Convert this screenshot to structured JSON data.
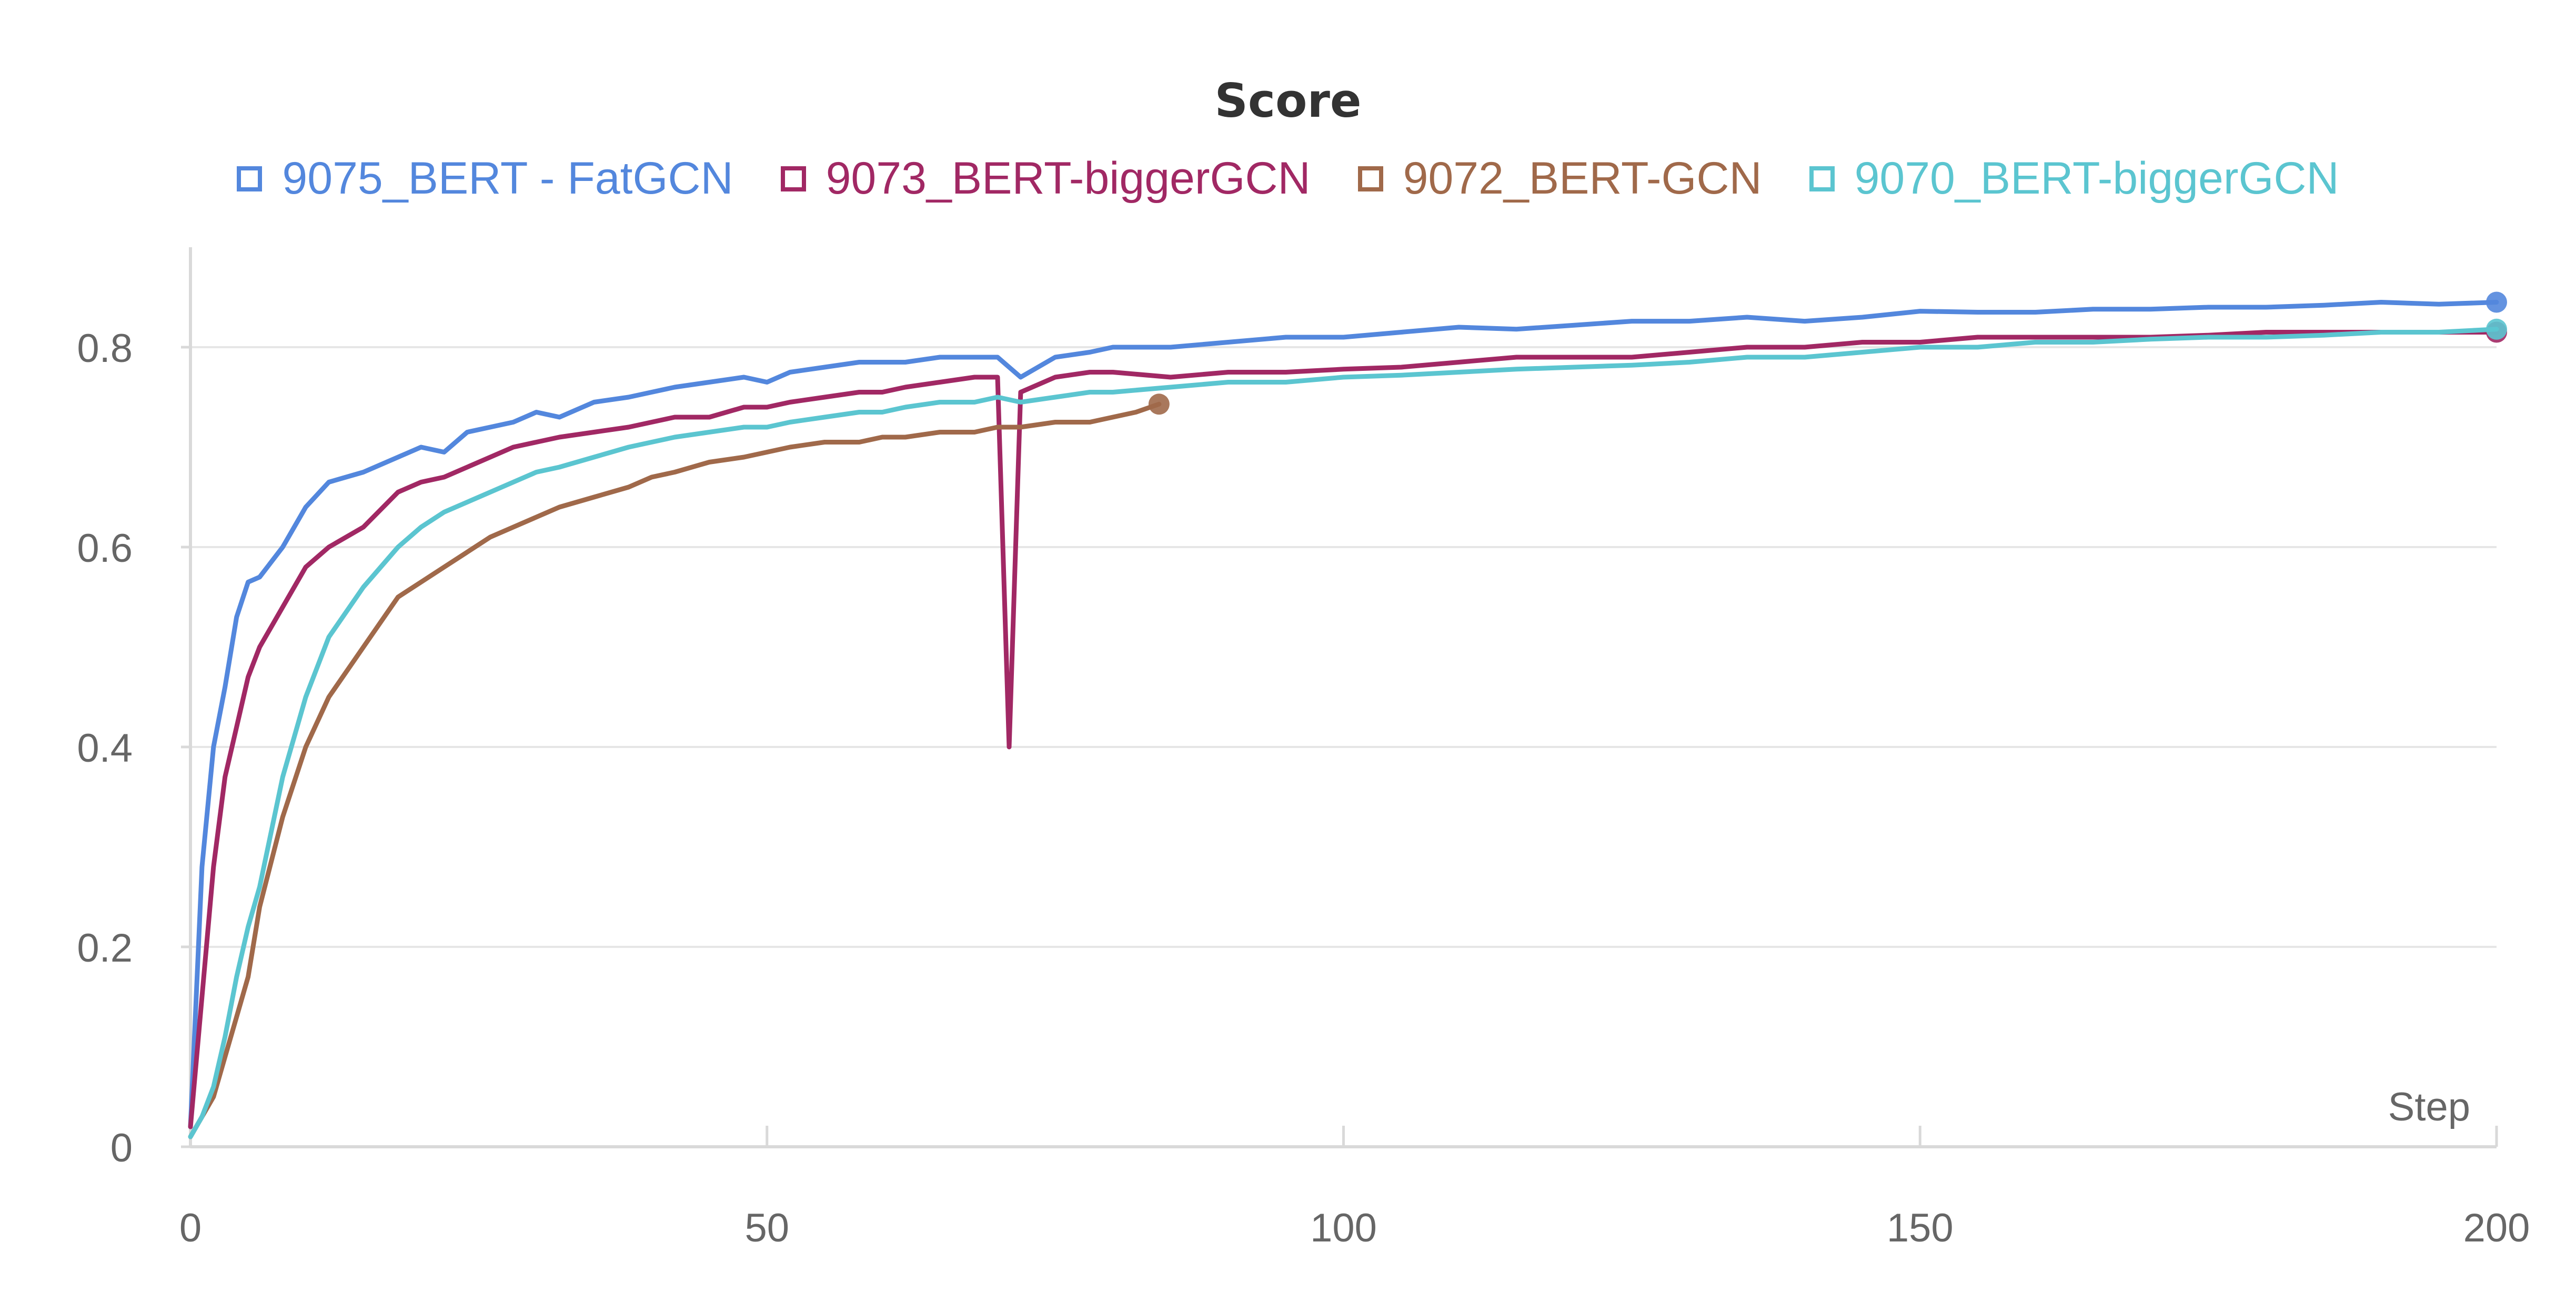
{
  "chart_data": {
    "type": "line",
    "title": "Score",
    "xlabel": "Step",
    "ylabel": "",
    "xlim": [
      0,
      200
    ],
    "ylim": [
      0,
      0.9
    ],
    "x_ticks": [
      0,
      50,
      100,
      150,
      200
    ],
    "x_tick_labels": [
      "0",
      "50",
      "100",
      "150",
      "200"
    ],
    "y_ticks": [
      0,
      0.2,
      0.4,
      0.6,
      0.8
    ],
    "y_tick_labels": [
      "0",
      "0.2",
      "0.4",
      "0.6",
      "0.8"
    ],
    "grid": true,
    "legend": "top-center",
    "series": [
      {
        "name": "9075_BERT - FatGCN",
        "color": "#5387dd",
        "x": [
          0,
          1,
          2,
          3,
          4,
          5,
          6,
          8,
          10,
          12,
          15,
          18,
          20,
          22,
          24,
          26,
          28,
          30,
          32,
          35,
          38,
          40,
          42,
          45,
          48,
          50,
          52,
          55,
          58,
          60,
          62,
          65,
          68,
          70,
          72,
          75,
          78,
          80,
          85,
          90,
          95,
          100,
          105,
          110,
          115,
          120,
          125,
          130,
          135,
          140,
          145,
          150,
          155,
          160,
          165,
          170,
          175,
          180,
          185,
          190,
          195,
          200
        ],
        "y": [
          0.02,
          0.28,
          0.4,
          0.46,
          0.53,
          0.565,
          0.57,
          0.6,
          0.64,
          0.665,
          0.675,
          0.69,
          0.7,
          0.695,
          0.715,
          0.72,
          0.725,
          0.735,
          0.73,
          0.745,
          0.75,
          0.755,
          0.76,
          0.765,
          0.77,
          0.765,
          0.775,
          0.78,
          0.785,
          0.785,
          0.785,
          0.79,
          0.79,
          0.79,
          0.77,
          0.79,
          0.795,
          0.8,
          0.8,
          0.805,
          0.81,
          0.81,
          0.815,
          0.82,
          0.818,
          0.822,
          0.826,
          0.826,
          0.83,
          0.826,
          0.83,
          0.836,
          0.835,
          0.835,
          0.838,
          0.838,
          0.84,
          0.84,
          0.842,
          0.845,
          0.843,
          0.845
        ]
      },
      {
        "name": "9073_BERT-biggerGCN",
        "color": "#a12864",
        "x": [
          0,
          1,
          2,
          3,
          4,
          5,
          6,
          8,
          10,
          12,
          15,
          18,
          20,
          22,
          24,
          26,
          28,
          30,
          32,
          35,
          38,
          40,
          42,
          45,
          48,
          50,
          52,
          55,
          58,
          60,
          62,
          65,
          68,
          70,
          71,
          72,
          75,
          78,
          80,
          85,
          90,
          95,
          100,
          105,
          110,
          115,
          120,
          125,
          130,
          135,
          140,
          145,
          150,
          155,
          160,
          165,
          170,
          175,
          180,
          185,
          190,
          195,
          200
        ],
        "y": [
          0.02,
          0.15,
          0.28,
          0.37,
          0.42,
          0.47,
          0.5,
          0.54,
          0.58,
          0.6,
          0.62,
          0.655,
          0.665,
          0.67,
          0.68,
          0.69,
          0.7,
          0.705,
          0.71,
          0.715,
          0.72,
          0.725,
          0.73,
          0.73,
          0.74,
          0.74,
          0.745,
          0.75,
          0.755,
          0.755,
          0.76,
          0.765,
          0.77,
          0.77,
          0.4,
          0.755,
          0.77,
          0.775,
          0.775,
          0.77,
          0.775,
          0.775,
          0.778,
          0.78,
          0.785,
          0.79,
          0.79,
          0.79,
          0.795,
          0.8,
          0.8,
          0.805,
          0.805,
          0.81,
          0.81,
          0.81,
          0.81,
          0.812,
          0.815,
          0.815,
          0.815,
          0.815,
          0.815
        ]
      },
      {
        "name": "9072_BERT-GCN",
        "color": "#a0694a",
        "x": [
          0,
          1,
          2,
          3,
          4,
          5,
          6,
          8,
          10,
          12,
          15,
          18,
          20,
          22,
          24,
          26,
          28,
          30,
          32,
          35,
          38,
          40,
          42,
          45,
          48,
          50,
          52,
          55,
          58,
          60,
          62,
          65,
          68,
          70,
          72,
          75,
          78,
          80,
          82,
          84
        ],
        "y": [
          0.01,
          0.03,
          0.05,
          0.09,
          0.13,
          0.17,
          0.24,
          0.33,
          0.4,
          0.45,
          0.5,
          0.55,
          0.565,
          0.58,
          0.595,
          0.61,
          0.62,
          0.63,
          0.64,
          0.65,
          0.66,
          0.67,
          0.675,
          0.685,
          0.69,
          0.695,
          0.7,
          0.705,
          0.705,
          0.71,
          0.71,
          0.715,
          0.715,
          0.72,
          0.72,
          0.725,
          0.725,
          0.73,
          0.735,
          0.743
        ]
      },
      {
        "name": "9070_BERT-biggerGCN",
        "color": "#5bc5d0",
        "x": [
          0,
          1,
          2,
          3,
          4,
          5,
          6,
          8,
          10,
          12,
          15,
          18,
          20,
          22,
          24,
          26,
          28,
          30,
          32,
          35,
          38,
          40,
          42,
          45,
          48,
          50,
          52,
          55,
          58,
          60,
          62,
          65,
          68,
          70,
          72,
          75,
          78,
          80,
          85,
          90,
          95,
          100,
          105,
          110,
          115,
          120,
          125,
          130,
          135,
          140,
          145,
          150,
          155,
          160,
          165,
          170,
          175,
          180,
          185,
          190,
          195,
          200
        ],
        "y": [
          0.01,
          0.03,
          0.06,
          0.11,
          0.17,
          0.22,
          0.26,
          0.37,
          0.45,
          0.51,
          0.56,
          0.6,
          0.62,
          0.635,
          0.645,
          0.655,
          0.665,
          0.675,
          0.68,
          0.69,
          0.7,
          0.705,
          0.71,
          0.715,
          0.72,
          0.72,
          0.725,
          0.73,
          0.735,
          0.735,
          0.74,
          0.745,
          0.745,
          0.75,
          0.745,
          0.75,
          0.755,
          0.755,
          0.76,
          0.765,
          0.765,
          0.77,
          0.772,
          0.775,
          0.778,
          0.78,
          0.782,
          0.785,
          0.79,
          0.79,
          0.795,
          0.8,
          0.8,
          0.805,
          0.805,
          0.808,
          0.81,
          0.81,
          0.812,
          0.815,
          0.815,
          0.818
        ]
      }
    ]
  }
}
